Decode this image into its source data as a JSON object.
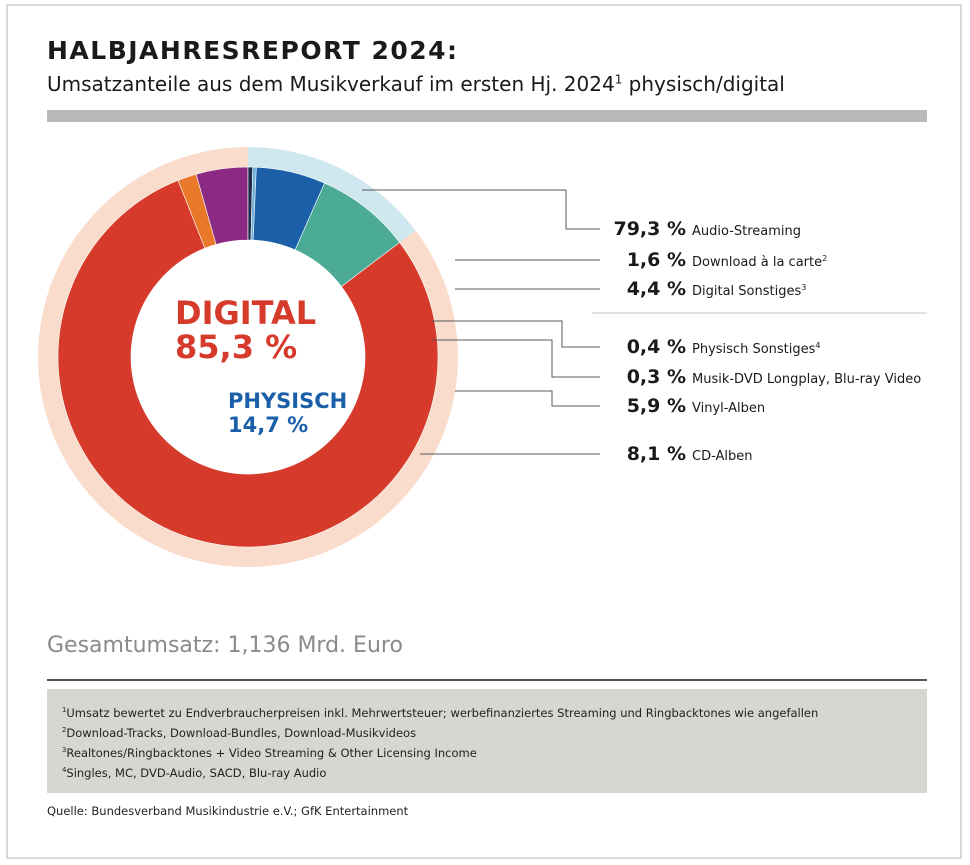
{
  "title": "HALBJAHRESREPORT 2024:",
  "subtitle_main": "Umsatzanteile aus dem Musikverkauf im ersten Hj. 2024",
  "subtitle_sup": "1",
  "subtitle_end": " physisch/digital",
  "total": "Gesamtumsatz: 1,136 Mrd. Euro",
  "footnotes": [
    {
      "sup": "1",
      "text": "Umsatz bewertet zu Endverbraucherpreisen inkl. Mehrwertsteuer; werbefinanziertes Streaming und Ringbacktones wie angefallen"
    },
    {
      "sup": "2",
      "text": "Download-Tracks, Download-Bundles, Download-Musikvideos"
    },
    {
      "sup": "3",
      "text": "Realtones/Ringbacktones + Video Streaming & Other Licensing Income"
    },
    {
      "sup": "4",
      "text": "Singles, MC, DVD-Audio, SACD, Blu-ray Audio"
    }
  ],
  "source": "Quelle: Bundesverband Musikindustrie e.V.; GfK Entertainment",
  "colors": {
    "digital_text": "#d63a2a",
    "physisch_text": "#1a5fa8",
    "digital_ring": "#f9dccb",
    "physisch_ring": "#cfe8ef"
  },
  "chart_data": {
    "type": "pie",
    "groups": [
      {
        "name": "DIGITAL",
        "value_label": "85,3 %",
        "value": 85.3
      },
      {
        "name": "PHYSISCH",
        "value_label": "14,7 %",
        "value": 14.7
      }
    ],
    "slices": [
      {
        "value": 79.3,
        "value_label": "79,3 %",
        "label": "Audio-Streaming",
        "sup": "",
        "group": "DIGITAL",
        "color": "#d63a2a"
      },
      {
        "value": 1.6,
        "value_label": "1,6 %",
        "label": "Download à la carte",
        "sup": "2",
        "group": "DIGITAL",
        "color": "#e8792a"
      },
      {
        "value": 4.4,
        "value_label": "4,4 %",
        "label": "Digital Sonstiges",
        "sup": "3",
        "group": "DIGITAL",
        "color": "#8b2a82"
      },
      {
        "value": 0.4,
        "value_label": "0,4 %",
        "label": "Physisch Sonstiges",
        "sup": "4",
        "group": "PHYSISCH",
        "color": "#1d2a4a"
      },
      {
        "value": 0.3,
        "value_label": "0,3 %",
        "label": "Musik-DVD Longplay, Blu-ray Video",
        "sup": "",
        "group": "PHYSISCH",
        "color": "#6aaed6"
      },
      {
        "value": 5.9,
        "value_label": "5,9 %",
        "label": "Vinyl-Alben",
        "sup": "",
        "group": "PHYSISCH",
        "color": "#1a5fa8"
      },
      {
        "value": 8.1,
        "value_label": "8,1 %",
        "label": "CD-Alben",
        "sup": "",
        "group": "PHYSISCH",
        "color": "#4cab94"
      }
    ]
  }
}
